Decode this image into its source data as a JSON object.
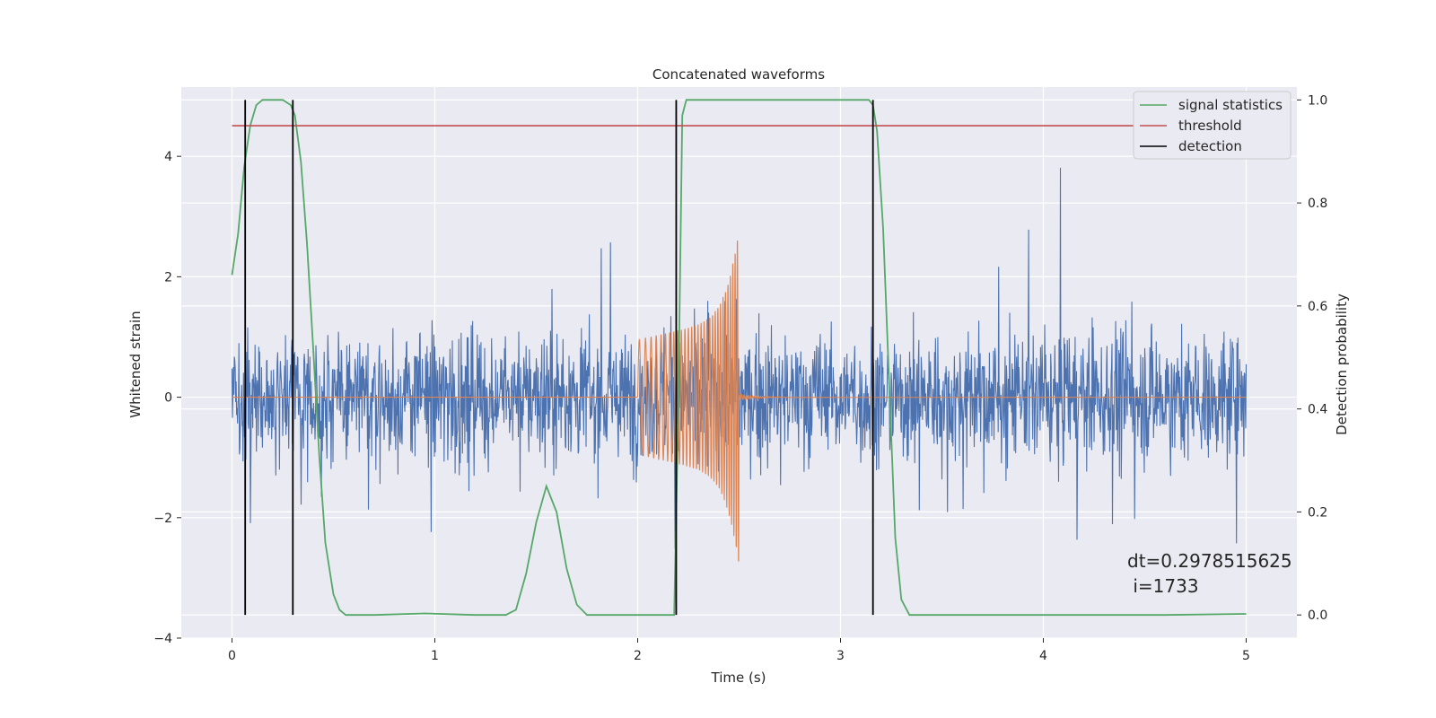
{
  "chart_data": {
    "type": "line",
    "title": "Concatenated waveforms",
    "xlabel": "Time (s)",
    "ylabel": "Whitened strain",
    "y2label": "Detection probability",
    "xlim": [
      -0.25,
      5.25
    ],
    "ylim": [
      -4.0,
      5.15
    ],
    "y2lim": [
      -0.045,
      1.025
    ],
    "xticks": [
      0,
      1,
      2,
      3,
      4,
      5
    ],
    "yticks": [
      -4,
      -2,
      0,
      2,
      4
    ],
    "y2ticks": [
      0.0,
      0.2,
      0.4,
      0.6,
      0.8,
      1.0
    ],
    "grid": true,
    "legend_position": "top-right",
    "legend": [
      "signal statistics",
      "threshold",
      "detection"
    ],
    "colors": {
      "noise": "#4c72b0",
      "signal": "#dd8452",
      "signal_statistics": "#55a868",
      "threshold": "#c44e52",
      "detection": "#000000",
      "axes_bg": "#eaeaf2",
      "grid": "#ffffff"
    },
    "series": [
      {
        "name": "signal statistics",
        "axis": "right",
        "x": [
          0,
          0.03,
          0.06,
          0.09,
          0.12,
          0.15,
          0.2,
          0.25,
          0.29,
          0.31,
          0.34,
          0.37,
          0.4,
          0.43,
          0.46,
          0.5,
          0.53,
          0.56,
          0.7,
          0.95,
          1.2,
          1.35,
          1.4,
          1.45,
          1.5,
          1.55,
          1.6,
          1.65,
          1.7,
          1.75,
          1.85,
          2.0,
          2.18,
          2.2,
          2.22,
          2.24,
          2.3,
          2.6,
          3.0,
          3.14,
          3.16,
          3.18,
          3.21,
          3.24,
          3.27,
          3.3,
          3.34,
          4.0,
          4.6,
          5.0
        ],
        "values": [
          0.66,
          0.74,
          0.87,
          0.95,
          0.99,
          1.0,
          1.0,
          1.0,
          0.99,
          0.97,
          0.88,
          0.72,
          0.52,
          0.31,
          0.14,
          0.04,
          0.01,
          0.0,
          0.0,
          0.003,
          0.0,
          0.0,
          0.01,
          0.08,
          0.18,
          0.25,
          0.2,
          0.09,
          0.02,
          0.0,
          0.0,
          0.0,
          0.0,
          0.4,
          0.97,
          1.0,
          1.0,
          1.0,
          1.0,
          1.0,
          0.99,
          0.94,
          0.75,
          0.45,
          0.15,
          0.03,
          0.0,
          0.0,
          0.0,
          0.002
        ]
      },
      {
        "name": "threshold",
        "axis": "right",
        "x": [
          0,
          5
        ],
        "values": [
          0.95,
          0.95
        ]
      },
      {
        "name": "detection",
        "axis": "right",
        "x": [
          0.065,
          0.3,
          2.19,
          3.16
        ],
        "values": [
          1.0,
          1.0,
          1.0,
          1.0
        ]
      }
    ],
    "annotation": [
      "dt=0.2978515625",
      " i=1733"
    ]
  }
}
